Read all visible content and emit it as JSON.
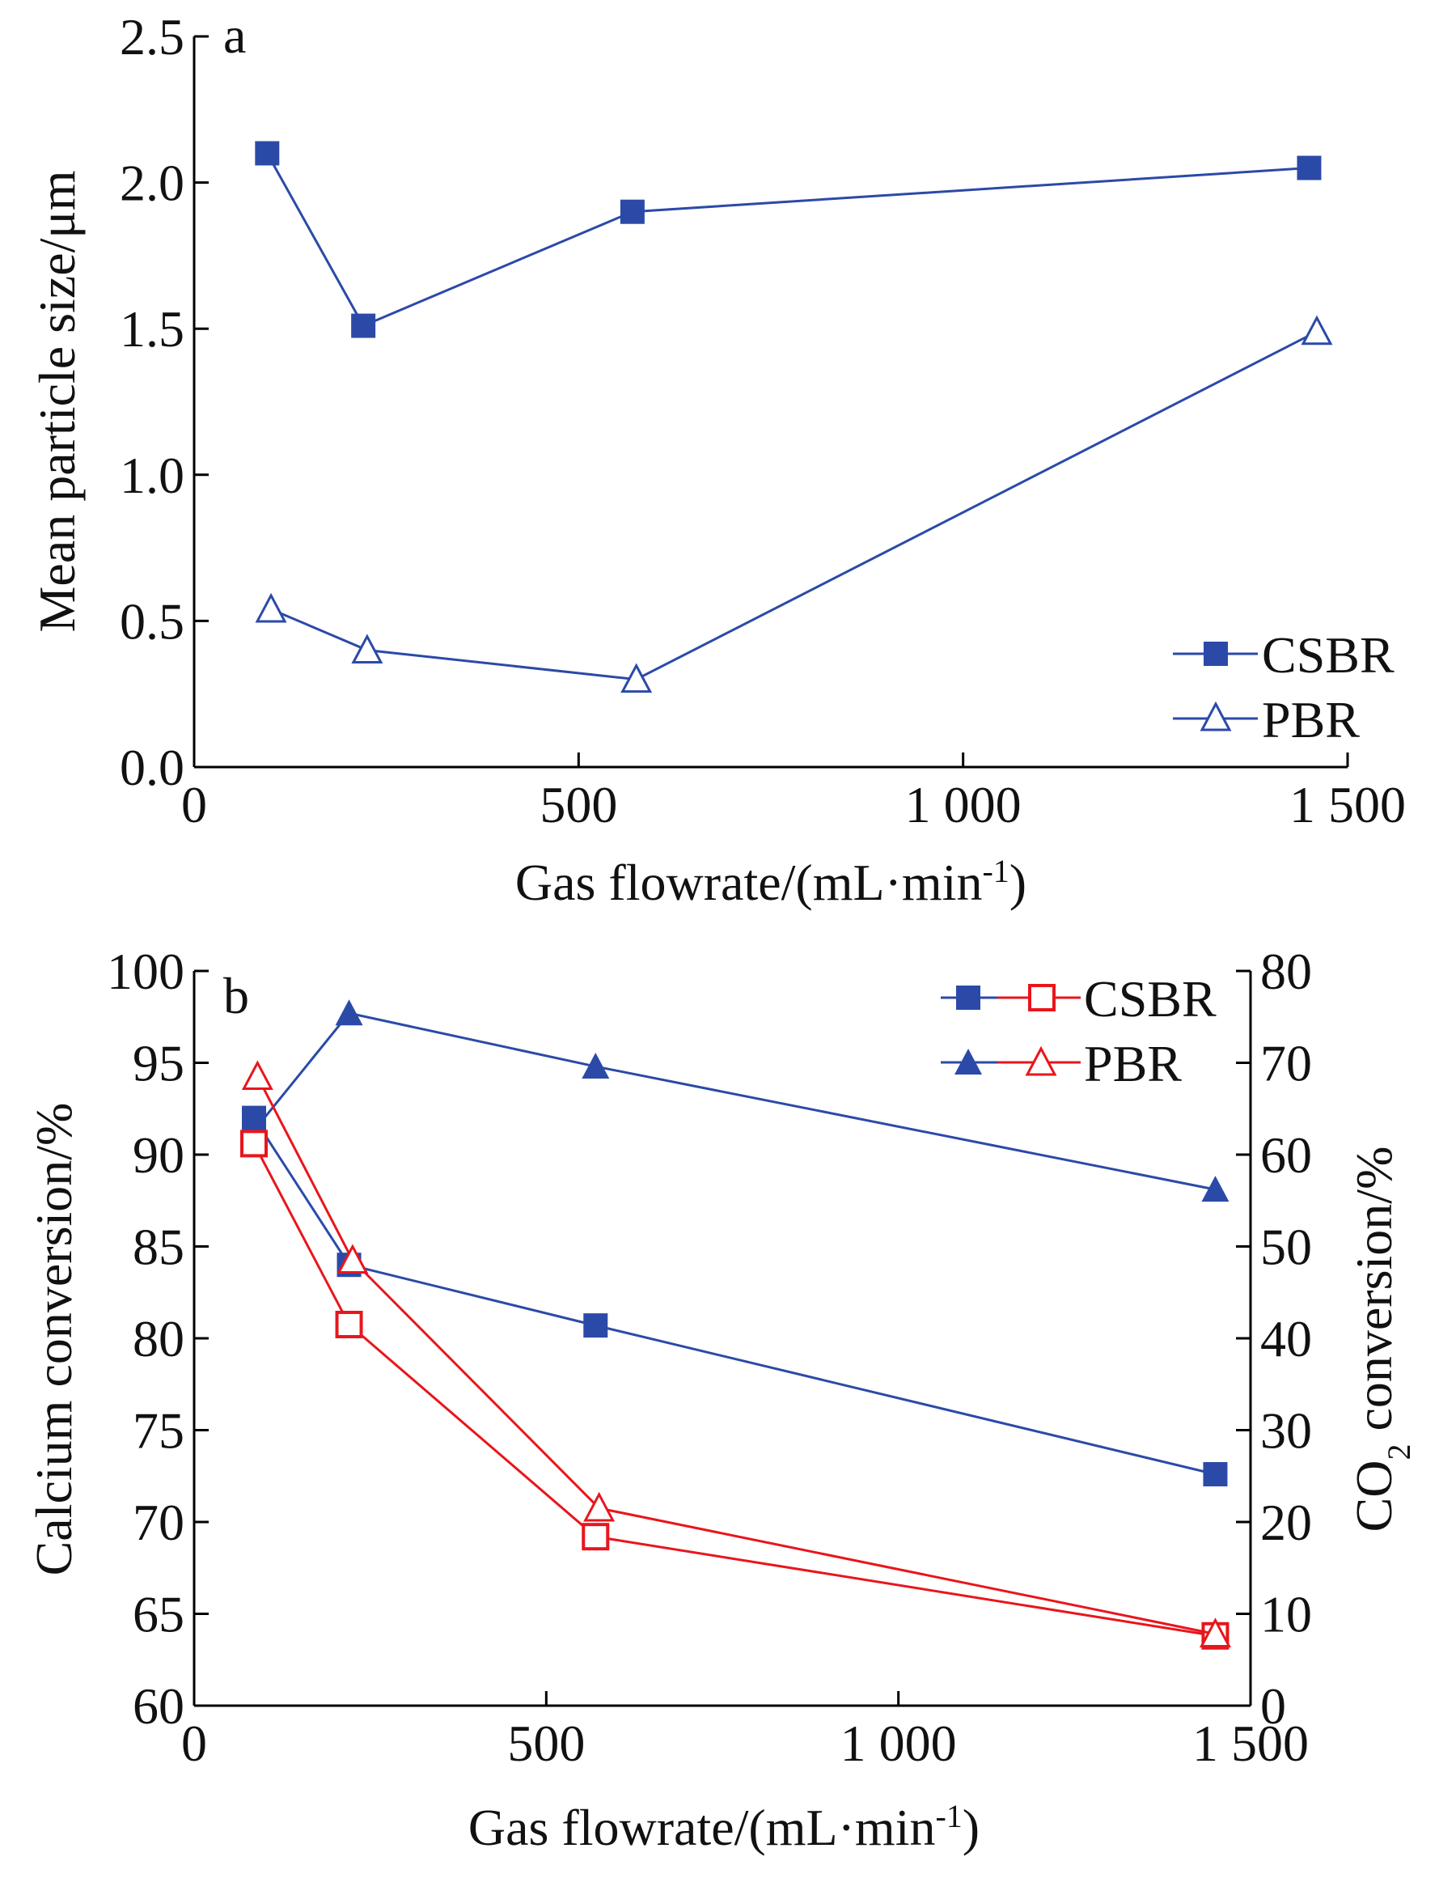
{
  "chart_data": [
    {
      "type": "line",
      "panel_label": "a",
      "xlabel": "Gas flowrate/(mL·min-1)",
      "ylabel": "Mean particle size/μm",
      "xlim": [
        0,
        1500
      ],
      "ylim": [
        0,
        2.5
      ],
      "xticks": [
        0,
        500,
        1000,
        1500
      ],
      "xtick_labels": [
        "0",
        "500",
        "1 000",
        "1 500"
      ],
      "yticks": [
        0,
        0.5,
        1.0,
        1.5,
        2.0,
        2.5
      ],
      "ytick_labels": [
        "0.0",
        "0.5",
        "1.0",
        "1.5",
        "2.0",
        "2.5"
      ],
      "legend_position": "bottom-right",
      "series": [
        {
          "name": "CSBR",
          "marker": "filled-square",
          "color": "#2b4aa8",
          "x": [
            95,
            220,
            570,
            1450
          ],
          "y": [
            2.1,
            1.51,
            1.9,
            2.05
          ]
        },
        {
          "name": "PBR",
          "marker": "open-triangle",
          "color": "#2b4aa8",
          "x": [
            100,
            225,
            575,
            1460
          ],
          "y": [
            0.54,
            0.4,
            0.3,
            1.49
          ]
        }
      ]
    },
    {
      "type": "line",
      "panel_label": "b",
      "xlabel": "Gas flowrate/(mL·min-1)",
      "ylabel": "Calcium conversion/%",
      "ylabel_right": "CO2 conversion/%",
      "xlim": [
        0,
        1500
      ],
      "ylim": [
        60,
        100
      ],
      "ylim_right": [
        0,
        80
      ],
      "xticks": [
        0,
        500,
        1000,
        1500
      ],
      "xtick_labels": [
        "0",
        "500",
        "1 000",
        "1 500"
      ],
      "yticks": [
        60,
        65,
        70,
        75,
        80,
        85,
        90,
        95,
        100
      ],
      "ytick_labels": [
        "60",
        "65",
        "70",
        "75",
        "80",
        "85",
        "90",
        "95",
        "100"
      ],
      "yticks_right": [
        0,
        10,
        20,
        30,
        40,
        50,
        60,
        70,
        80
      ],
      "ytick_labels_right": [
        "0",
        "10",
        "20",
        "30",
        "40",
        "50",
        "60",
        "70",
        "80"
      ],
      "legend_position": "top-right",
      "legend": [
        "CSBR",
        "PBR"
      ],
      "series": [
        {
          "legend": "CSBR",
          "axis": "left",
          "marker": "filled-square",
          "color": "#2b4aa8",
          "x": [
            85,
            220,
            570,
            1450
          ],
          "y": [
            92.0,
            84.0,
            80.7,
            72.6
          ]
        },
        {
          "legend": "PBR",
          "axis": "left",
          "marker": "filled-triangle",
          "color": "#2b4aa8",
          "x": [
            85,
            220,
            570,
            1450
          ],
          "y": [
            91.3,
            97.7,
            94.8,
            88.1
          ]
        },
        {
          "legend": "CSBR",
          "axis": "right",
          "marker": "open-square",
          "color": "#e8161c",
          "x": [
            85,
            220,
            570,
            1450
          ],
          "y": [
            61.2,
            41.5,
            18.4,
            7.6
          ]
        },
        {
          "legend": "PBR",
          "axis": "right",
          "marker": "open-triangle",
          "color": "#e8161c",
          "x": [
            90,
            225,
            575,
            1450
          ],
          "y": [
            68.5,
            48.5,
            21.5,
            7.8
          ]
        }
      ]
    }
  ]
}
